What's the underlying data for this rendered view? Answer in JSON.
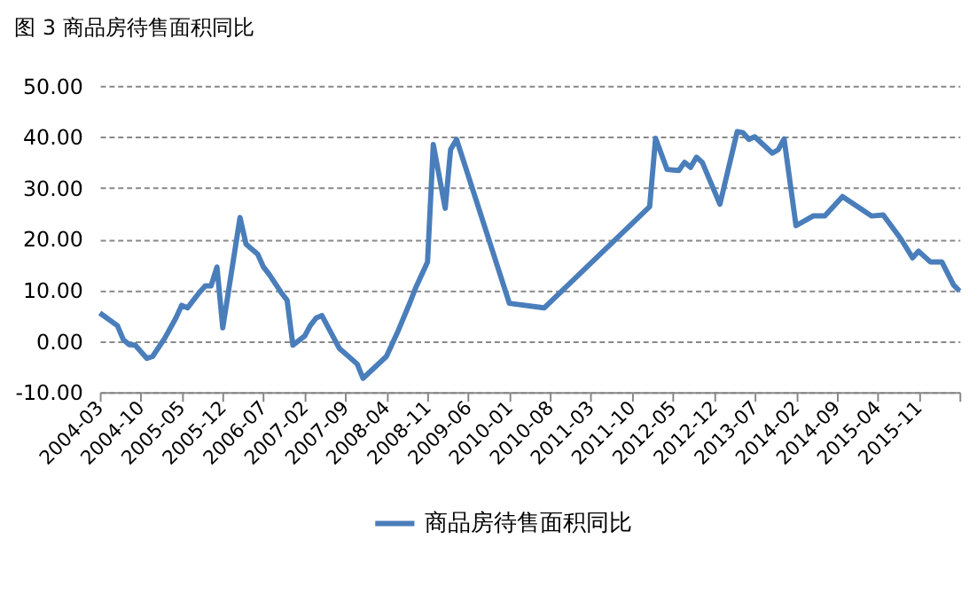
{
  "chart_data": {
    "type": "line",
    "title": "图 3 商品房待售面积同比",
    "x": [
      "2004-03",
      "2004-06",
      "2004-07",
      "2004-08",
      "2004-09",
      "2004-11",
      "2004-12",
      "2005-02",
      "2005-04",
      "2005-05",
      "2005-06",
      "2005-07",
      "2005-08",
      "2005-09",
      "2005-10",
      "2005-11",
      "2005-12",
      "2006-03",
      "2006-04",
      "2006-05",
      "2006-06",
      "2006-07",
      "2006-08",
      "2006-10",
      "2006-11",
      "2006-12",
      "2007-02",
      "2007-03",
      "2007-04",
      "2007-05",
      "2007-08",
      "2007-09",
      "2007-11",
      "2007-12",
      "2008-04",
      "2008-06",
      "2008-08",
      "2008-09",
      "2008-11",
      "2008-12",
      "2009-02",
      "2009-03",
      "2009-04",
      "2010-01",
      "2010-07",
      "2012-01",
      "2012-02",
      "2012-04",
      "2012-06",
      "2012-07",
      "2012-08",
      "2012-09",
      "2012-10",
      "2013-01",
      "2013-04",
      "2013-05",
      "2013-06",
      "2013-07",
      "2013-10",
      "2013-11",
      "2013-12",
      "2014-02",
      "2014-05",
      "2014-07",
      "2014-10",
      "2015-01",
      "2015-03",
      "2015-05",
      "2015-08",
      "2015-10",
      "2015-11",
      "2016-01",
      "2016-03",
      "2016-05",
      "2016-06"
    ],
    "series": [
      {
        "name": "商品房待售面积同比",
        "color": "#4a7ebb",
        "values": [
          5.5,
          3.0,
          0.3,
          -0.7,
          -0.8,
          -3.4,
          -3.0,
          0.5,
          4.5,
          7.0,
          6.5,
          8.0,
          9.5,
          10.8,
          10.8,
          14.5,
          2.6,
          24.2,
          19,
          18,
          17,
          14.5,
          13,
          9.5,
          8,
          -0.8,
          1,
          3,
          4.5,
          5,
          -1.5,
          -2.5,
          -4.5,
          -7.3,
          -3,
          2,
          7.5,
          10.5,
          15.5,
          38.5,
          26,
          37.5,
          39.5,
          7.4,
          6.5,
          26.3,
          39.7,
          33.6,
          33.4,
          35,
          34,
          36,
          35,
          26.8,
          41,
          40.8,
          39.5,
          40,
          36.8,
          37.5,
          39.6,
          22.6,
          24.5,
          24.5,
          28.3,
          26,
          24.5,
          24.7,
          20,
          16.3,
          17.6,
          15.5,
          15.5,
          11,
          9.8
        ]
      }
    ],
    "xlim": [
      "2004-03",
      "2016-06"
    ],
    "xticks": [
      {
        "value": "2004-03",
        "label": "2004-03"
      },
      {
        "value": "2004-10",
        "label": "2004-10"
      },
      {
        "value": "2005-05",
        "label": "2005-05"
      },
      {
        "value": "2005-12",
        "label": "2005-12"
      },
      {
        "value": "2006-07",
        "label": "2006-07"
      },
      {
        "value": "2007-02",
        "label": "2007-02"
      },
      {
        "value": "2007-09",
        "label": "2007-09"
      },
      {
        "value": "2008-04",
        "label": "2008-04"
      },
      {
        "value": "2008-11",
        "label": "2008-11"
      },
      {
        "value": "2009-06",
        "label": "2009-06"
      },
      {
        "value": "2010-01",
        "label": "2010-01"
      },
      {
        "value": "2010-08",
        "label": "2010-08"
      },
      {
        "value": "2011-03",
        "label": "2011-03"
      },
      {
        "value": "2011-10",
        "label": "2011-10"
      },
      {
        "value": "2012-05",
        "label": "2012-05"
      },
      {
        "value": "2012-12",
        "label": "2012-12"
      },
      {
        "value": "2013-07",
        "label": "2013-07"
      },
      {
        "value": "2014-02",
        "label": "2014-02"
      },
      {
        "value": "2014-09",
        "label": "2014-09"
      },
      {
        "value": "2015-04",
        "label": "2015-04"
      },
      {
        "value": "2015-11",
        "label": "2015-11"
      },
      {
        "value": "2016-06",
        "label": null
      }
    ],
    "ylim": [
      -10,
      50
    ],
    "yticks": [
      {
        "value": -10,
        "label": "-10.00"
      },
      {
        "value": 0,
        "label": "0.00"
      },
      {
        "value": 10,
        "label": "10.00"
      },
      {
        "value": 20,
        "label": "20.00"
      },
      {
        "value": 30,
        "label": "30.00"
      },
      {
        "value": 40,
        "label": "40.00"
      },
      {
        "value": 50,
        "label": "50.00"
      }
    ],
    "grid": "y",
    "legend": "bottom",
    "marker": "none",
    "line_style": "solid"
  }
}
